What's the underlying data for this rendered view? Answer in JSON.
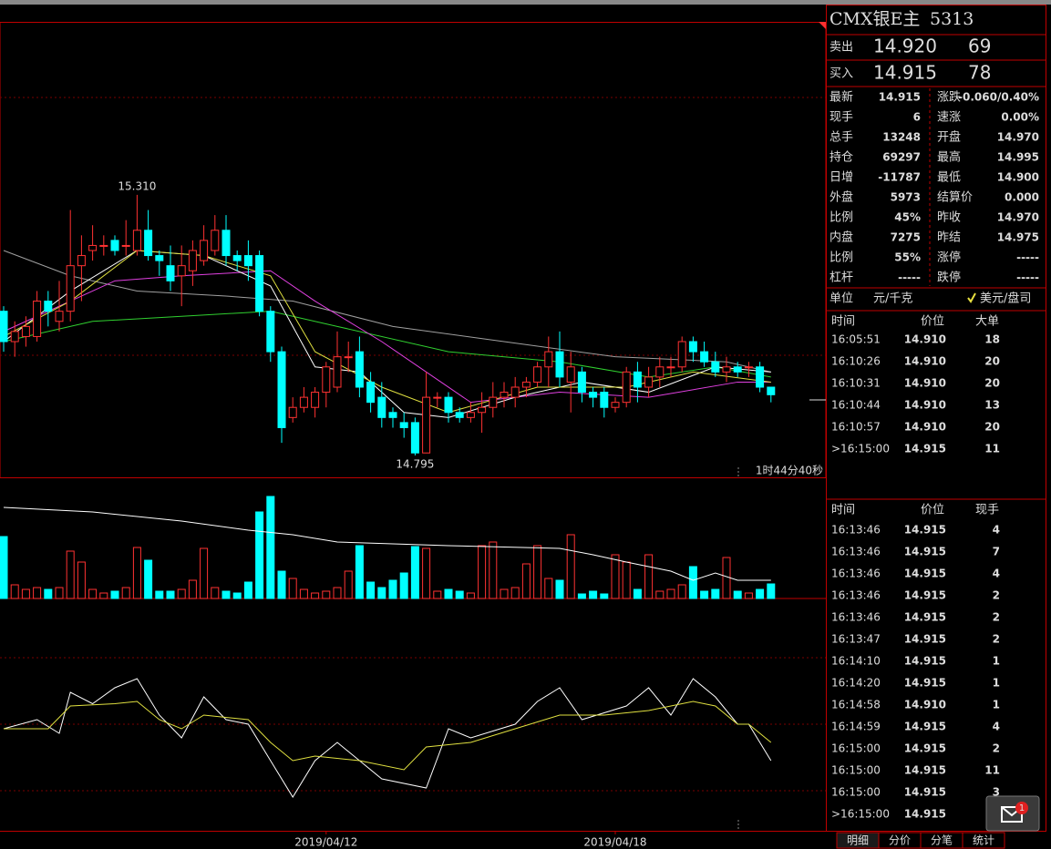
{
  "chart_data": {
    "type": "candlestick",
    "ylim": [
      14.75,
      15.65
    ],
    "open": [
      15.08,
      15.02,
      15.03,
      15.03,
      15.1,
      15.06,
      15.08,
      15.17,
      15.2,
      15.21,
      15.22,
      15.21,
      15.2,
      15.24,
      15.19,
      15.17,
      15.15,
      15.16,
      15.18,
      15.2,
      15.24,
      15.19,
      15.19,
      15.19,
      15.08,
      15.0,
      14.87,
      14.89,
      14.89,
      14.92,
      14.93,
      14.99,
      15.0,
      14.94,
      14.91,
      14.88,
      14.86,
      14.86,
      14.8,
      14.91,
      14.91,
      14.88,
      14.87,
      14.88,
      14.89,
      14.91,
      14.91,
      14.93,
      14.94,
      14.97,
      15.0,
      14.94,
      14.96,
      14.92,
      14.92,
      14.89,
      14.9,
      14.96,
      14.93,
      14.95,
      14.97,
      14.97,
      15.02,
      15.0,
      14.98,
      14.96,
      14.97,
      14.97,
      14.97,
      14.93
    ],
    "high": [
      15.09,
      15.06,
      15.07,
      15.12,
      15.12,
      15.14,
      15.28,
      15.23,
      15.25,
      15.23,
      15.23,
      15.26,
      15.31,
      15.28,
      15.2,
      15.21,
      15.21,
      15.22,
      15.25,
      15.27,
      15.27,
      15.2,
      15.22,
      15.2,
      15.09,
      15.01,
      14.91,
      14.93,
      14.93,
      14.98,
      15.04,
      15.02,
      15.03,
      14.96,
      14.94,
      14.89,
      14.88,
      14.87,
      14.96,
      14.92,
      14.92,
      14.89,
      14.9,
      14.92,
      14.94,
      14.94,
      14.95,
      14.95,
      14.98,
      15.03,
      15.04,
      15.0,
      14.97,
      14.93,
      14.93,
      14.91,
      14.97,
      14.98,
      14.97,
      14.99,
      14.99,
      15.03,
      15.03,
      15.02,
      15.0,
      14.99,
      14.98,
      14.98,
      14.98,
      14.93
    ],
    "low": [
      15.0,
      14.99,
      15.01,
      15.02,
      15.05,
      15.04,
      15.06,
      15.1,
      15.18,
      15.19,
      15.19,
      15.19,
      15.19,
      15.18,
      15.15,
      15.12,
      15.09,
      15.13,
      15.17,
      15.19,
      15.17,
      15.16,
      15.14,
      15.07,
      14.98,
      14.82,
      14.86,
      14.88,
      14.87,
      14.89,
      14.92,
      14.96,
      14.91,
      14.88,
      14.85,
      14.85,
      14.83,
      14.795,
      14.8,
      14.89,
      14.86,
      14.86,
      14.86,
      14.84,
      14.87,
      14.89,
      14.89,
      14.91,
      14.93,
      14.93,
      14.93,
      14.88,
      14.9,
      14.89,
      14.87,
      14.88,
      14.89,
      14.9,
      14.91,
      14.93,
      14.95,
      14.96,
      14.98,
      14.97,
      14.95,
      14.94,
      14.95,
      14.95,
      14.92,
      14.9
    ],
    "close": [
      15.02,
      15.04,
      15.05,
      15.1,
      15.08,
      15.08,
      15.17,
      15.19,
      15.21,
      15.21,
      15.2,
      15.21,
      15.24,
      15.19,
      15.18,
      15.14,
      15.17,
      15.2,
      15.22,
      15.24,
      15.19,
      15.18,
      15.17,
      15.08,
      15.0,
      14.85,
      14.89,
      14.91,
      14.92,
      14.97,
      14.99,
      14.99,
      14.93,
      14.9,
      14.87,
      14.87,
      14.85,
      14.8,
      14.91,
      14.91,
      14.88,
      14.87,
      14.88,
      14.89,
      14.91,
      14.92,
      14.93,
      14.94,
      14.97,
      15.0,
      14.95,
      14.97,
      14.92,
      14.91,
      14.89,
      14.9,
      14.96,
      14.93,
      14.95,
      14.97,
      14.97,
      15.02,
      15.0,
      14.98,
      14.96,
      14.97,
      14.96,
      14.97,
      14.93,
      14.915
    ],
    "ma_lines": [
      {
        "color": "#a0a0a0",
        "x": [
          0,
          6,
          12,
          20,
          26,
          35,
          45,
          55,
          65,
          69
        ],
        "values": [
          15.2,
          15.15,
          15.12,
          15.11,
          15.1,
          15.05,
          15.02,
          14.99,
          14.98,
          14.96
        ]
      },
      {
        "color": "#30d030",
        "x": [
          0,
          8,
          16,
          24,
          30,
          40,
          50,
          58,
          64,
          69
        ],
        "values": [
          15.02,
          15.06,
          15.07,
          15.08,
          15.05,
          15.0,
          14.98,
          14.95,
          14.97,
          14.95
        ]
      },
      {
        "color": "#e040e0",
        "x": [
          0,
          10,
          16,
          24,
          28,
          34,
          42,
          50,
          58,
          66,
          69
        ],
        "values": [
          15.04,
          15.14,
          15.15,
          15.16,
          15.1,
          15.02,
          14.9,
          14.92,
          14.91,
          14.94,
          14.94
        ]
      },
      {
        "color": "#ffffff",
        "x": [
          0,
          6,
          12,
          18,
          24,
          28,
          32,
          36,
          40,
          46,
          52,
          58,
          64,
          69
        ],
        "values": [
          15.02,
          15.12,
          15.2,
          15.19,
          15.13,
          14.97,
          14.96,
          14.88,
          14.87,
          14.91,
          14.94,
          14.92,
          14.97,
          14.96
        ]
      },
      {
        "color": "#e0e040",
        "x": [
          0,
          6,
          12,
          18,
          24,
          28,
          34,
          40,
          48,
          56,
          62,
          69
        ],
        "values": [
          15.03,
          15.1,
          15.2,
          15.19,
          15.15,
          15.0,
          14.93,
          14.88,
          14.93,
          14.93,
          14.96,
          14.94
        ]
      }
    ],
    "annotations": [
      {
        "text": "15.310",
        "x": 12,
        "y": 15.31,
        "color": "#ff4040"
      },
      {
        "text": "14.795",
        "x": 37,
        "y": 14.795,
        "color": "#40e0e0"
      }
    ],
    "volume": [
      68,
      15,
      10,
      12,
      10,
      12,
      52,
      40,
      10,
      6,
      8,
      12,
      56,
      42,
      8,
      8,
      10,
      20,
      55,
      12,
      8,
      6,
      18,
      95,
      112,
      30,
      22,
      10,
      6,
      8,
      12,
      30,
      58,
      18,
      12,
      20,
      28,
      57,
      55,
      8,
      10,
      8,
      6,
      58,
      62,
      10,
      12,
      38,
      58,
      22,
      20,
      70,
      5,
      8,
      5,
      48,
      40,
      10,
      48,
      8,
      10,
      15,
      35,
      8,
      10,
      45,
      8,
      6,
      10,
      16
    ],
    "volume_ylim": [
      0,
      120
    ],
    "volume_ma": {
      "x": [
        0,
        8,
        16,
        22,
        26,
        30,
        40,
        50,
        53,
        56,
        60,
        62,
        64,
        66,
        69
      ],
      "values": [
        100,
        95,
        85,
        75,
        70,
        62,
        58,
        55,
        48,
        40,
        30,
        20,
        28,
        20,
        20
      ]
    },
    "oscillator_ylim": [
      0,
      100
    ],
    "oscillator": [
      {
        "color": "#ffffff",
        "x": [
          0,
          3,
          5,
          6,
          8,
          10,
          12,
          14,
          16,
          18,
          20,
          22,
          24,
          26,
          28,
          30,
          34,
          38,
          40,
          42,
          46,
          48,
          50,
          52,
          56,
          58,
          60,
          62,
          64,
          66,
          67,
          69
        ],
        "values": [
          44,
          48,
          42,
          60,
          55,
          62,
          66,
          50,
          40,
          58,
          48,
          46,
          30,
          14,
          30,
          38,
          22,
          18,
          44,
          40,
          46,
          56,
          62,
          48,
          54,
          62,
          50,
          66,
          58,
          46,
          46,
          30
        ]
      },
      {
        "color": "#e0e040",
        "x": [
          0,
          4,
          6,
          10,
          12,
          14,
          16,
          18,
          22,
          24,
          26,
          28,
          32,
          36,
          38,
          42,
          46,
          50,
          54,
          58,
          62,
          64,
          66,
          67,
          69
        ],
        "values": [
          44,
          44,
          54,
          55,
          56,
          48,
          44,
          50,
          48,
          38,
          30,
          32,
          30,
          26,
          36,
          38,
          44,
          50,
          50,
          52,
          56,
          54,
          46,
          46,
          38
        ]
      }
    ],
    "xticks": [
      {
        "value": 29,
        "label": "2019/04/12"
      },
      {
        "value": 55,
        "label": "2019/04/18"
      }
    ],
    "countdown": "1时44分40秒"
  },
  "quote": {
    "name": "CMX银E主",
    "code": "5313",
    "sell": {
      "label": "卖出",
      "price": "14.920",
      "volume": "69"
    },
    "buy": {
      "label": "买入",
      "price": "14.915",
      "volume": "78"
    },
    "stats": [
      [
        {
          "label": "最新",
          "value": "14.915",
          "color": "#30ff30"
        },
        {
          "label": "涨跌",
          "value": "-0.060/0.40%",
          "color": "#30ff30"
        }
      ],
      [
        {
          "label": "现手",
          "value": "6",
          "color": "#ffff40"
        },
        {
          "label": "速涨",
          "value": "0.00%",
          "color": "#ffffff"
        }
      ],
      [
        {
          "label": "总手",
          "value": "13248",
          "color": "#ffff40"
        },
        {
          "label": "开盘",
          "value": "14.970",
          "color": "#30ff30"
        }
      ],
      [
        {
          "label": "持仓",
          "value": "69297",
          "color": "#ffff40"
        },
        {
          "label": "最高",
          "value": "14.995",
          "color": "#ff4040"
        }
      ],
      [
        {
          "label": "日增",
          "value": "-11787",
          "color": "#ffff40"
        },
        {
          "label": "最低",
          "value": "14.900",
          "color": "#30ff30"
        }
      ],
      [
        {
          "label": "外盘",
          "value": "5973",
          "color": "#ffff40"
        },
        {
          "label": "结算价",
          "value": "0.000",
          "color": "#ffffff"
        }
      ],
      [
        {
          "label": "比例",
          "value": "45%",
          "color": "#ffff40"
        },
        {
          "label": "昨收",
          "value": "14.970",
          "color": "#ffffff"
        }
      ],
      [
        {
          "label": "内盘",
          "value": "7275",
          "color": "#ffff40"
        },
        {
          "label": "昨结",
          "value": "14.975",
          "color": "#ffffff"
        }
      ],
      [
        {
          "label": "比例",
          "value": "55%",
          "color": "#ffff40"
        },
        {
          "label": "涨停",
          "value": "-----",
          "color": "#ff4040"
        }
      ],
      [
        {
          "label": "杠杆",
          "value": "-----",
          "color": "#ffff40"
        },
        {
          "label": "跌停",
          "value": "-----",
          "color": "#30ff30"
        }
      ]
    ],
    "unit": {
      "label": "单位",
      "option1": "元/千克",
      "option2": "美元/盘司"
    },
    "big_orders": {
      "headers": [
        "时间",
        "价位",
        "大单"
      ],
      "rows": [
        {
          "time": "16:05:51",
          "price": "14.910",
          "volume": "18",
          "color": "#30ff30"
        },
        {
          "time": "16:10:26",
          "price": "14.910",
          "volume": "20",
          "color": "#30ff30"
        },
        {
          "time": "16:10:31",
          "price": "14.910",
          "volume": "20",
          "color": "#30ff30"
        },
        {
          "time": "16:10:44",
          "price": "14.910",
          "volume": "13",
          "color": "#30ff30"
        },
        {
          "time": "16:10:57",
          "price": "14.910",
          "volume": "20",
          "color": "#30ff30"
        },
        {
          "time": ">16:15:00",
          "price": "14.915",
          "volume": "11",
          "color": "#ff4040"
        }
      ]
    },
    "ticks": {
      "headers": [
        "时间",
        "价位",
        "现手"
      ],
      "rows": [
        {
          "time": "16:13:46",
          "price": "14.915",
          "volume": "4",
          "color": "#ff4040"
        },
        {
          "time": "16:13:46",
          "price": "14.915",
          "volume": "7",
          "color": "#ff4040"
        },
        {
          "time": "16:13:46",
          "price": "14.915",
          "volume": "4",
          "color": "#ff4040"
        },
        {
          "time": "16:13:46",
          "price": "14.915",
          "volume": "2",
          "color": "#ff4040"
        },
        {
          "time": "16:13:46",
          "price": "14.915",
          "volume": "2",
          "color": "#ff4040"
        },
        {
          "time": "16:13:47",
          "price": "14.915",
          "volume": "2",
          "color": "#ff4040"
        },
        {
          "time": "16:14:10",
          "price": "14.915",
          "volume": "1",
          "color": "#ff4040"
        },
        {
          "time": "16:14:20",
          "price": "14.915",
          "volume": "1",
          "color": "#ff4040"
        },
        {
          "time": "16:14:58",
          "price": "14.910",
          "volume": "1",
          "color": "#30ff30"
        },
        {
          "time": "16:14:59",
          "price": "14.915",
          "volume": "4",
          "color": "#ff4040"
        },
        {
          "time": "16:15:00",
          "price": "14.915",
          "volume": "2",
          "color": "#ff4040"
        },
        {
          "time": "16:15:00",
          "price": "14.915",
          "volume": "11",
          "color": "#ff4040"
        },
        {
          "time": "16:15:00",
          "price": "14.915",
          "volume": "3",
          "color": "#ff4040"
        },
        {
          "time": ">16:15:00",
          "price": "14.915"
        }
      ]
    },
    "tabs": [
      "明细",
      "分价",
      "分笔",
      "统计"
    ],
    "mail_badge": "1"
  }
}
